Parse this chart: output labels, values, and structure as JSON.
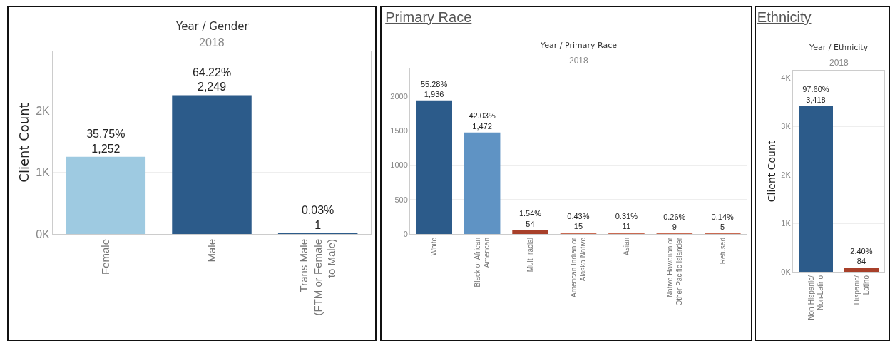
{
  "chart_data": [
    {
      "type": "bar",
      "subtitle": "Year / Gender",
      "annotations": [
        "2018"
      ],
      "ylabel": "Client Count",
      "categories": [
        "Female",
        "Male",
        "Trans Male\n(FTM or Female\nto Male)"
      ],
      "values": [
        1252,
        2249,
        1
      ],
      "colors": [
        "#9ecae1",
        "#2c5b8a",
        "#2c5b8a"
      ],
      "value_labels": [
        "35.75%\n1,252",
        "64.22%\n2,249",
        "0.03%\n1"
      ],
      "ylim": [
        0,
        2960
      ],
      "yticks": [
        {
          "value": 0,
          "label": "0K"
        },
        {
          "value": 1000,
          "label": "1K"
        },
        {
          "value": 2000,
          "label": "2K"
        }
      ],
      "grid": "y"
    },
    {
      "type": "bar",
      "title": "Primary Race",
      "subtitle": "Year / Primary Race",
      "annotations": [
        "2018"
      ],
      "categories": [
        "White",
        "Black or African\nAmerican",
        "Multi-racial",
        "American Indian or\nAlaska Native",
        "Asian",
        "Native Hawaiian or\nOther Pacific Islander",
        "Refused"
      ],
      "values": [
        1936,
        1472,
        54,
        15,
        11,
        9,
        5
      ],
      "colors": [
        "#2c5b8a",
        "#5f93c4",
        "#a8402a",
        "#c96a52",
        "#c96a52",
        "#c96a52",
        "#c96a52"
      ],
      "value_labels": [
        "55.28%\n1,936",
        "42.03%\n1,472",
        "1.54%\n54",
        "0.43%\n15",
        "0.31%\n11",
        "0.26%\n9",
        "0.14%\n5"
      ],
      "ylim": [
        0,
        2400
      ],
      "yticks": [
        0,
        500,
        1000,
        1500,
        2000
      ],
      "grid": "y"
    },
    {
      "type": "bar",
      "title": "Ethnicity",
      "subtitle": "Year / Ethnicity",
      "annotations": [
        "2018"
      ],
      "ylabel": "Client Count",
      "categories": [
        "Non-Hispanic/\nNon-Latino",
        "Hispanic/\nLatino"
      ],
      "values": [
        3418,
        84
      ],
      "colors": [
        "#2c5b8a",
        "#a8402a"
      ],
      "value_labels": [
        "97.60%\n3,418",
        "2.40%\n84"
      ],
      "ylim": [
        0,
        4150
      ],
      "yticks": [
        {
          "value": 0,
          "label": "0K"
        },
        {
          "value": 1000,
          "label": "1K"
        },
        {
          "value": 2000,
          "label": "2K"
        },
        {
          "value": 3000,
          "label": "3K"
        },
        {
          "value": 4000,
          "label": "4K"
        }
      ],
      "grid": "y"
    }
  ]
}
